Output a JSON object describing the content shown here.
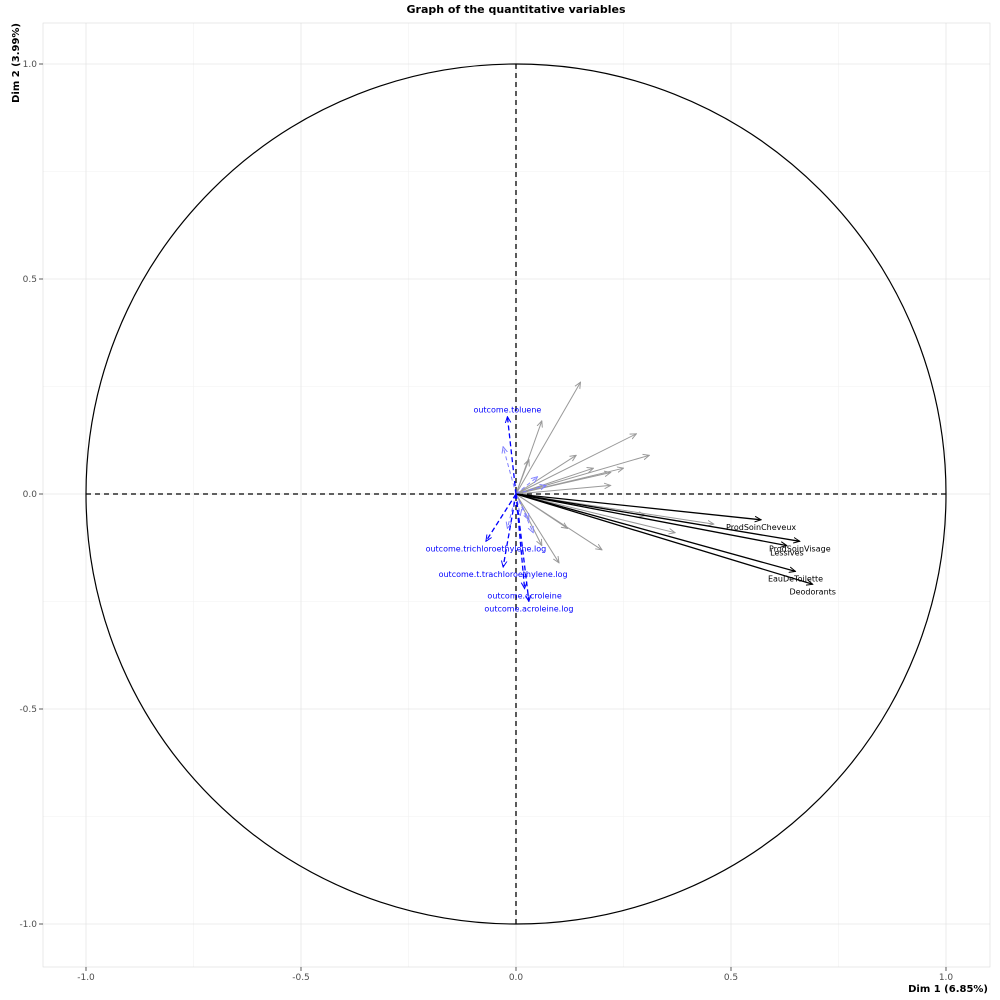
{
  "chart_data": {
    "type": "scatter",
    "subtype": "pca-correlation-circle",
    "title": "Graph of the quantitative variables",
    "xlabel": "Dim 1 (6.85%)",
    "ylabel": "Dim 2 (3.99%)",
    "xlim": [
      -1.0,
      1.0
    ],
    "ylim": [
      -1.0,
      1.0
    ],
    "x_ticks": [
      -1.0,
      -0.5,
      0.0,
      0.5,
      1.0
    ],
    "x_tick_labels": [
      "-1.0",
      "-0.5",
      "0.0",
      "0.5",
      "1.0"
    ],
    "y_ticks": [
      -1.0,
      -0.5,
      0.0,
      0.5,
      1.0
    ],
    "y_tick_labels": [
      "-1.0",
      "-0.5",
      "0.0",
      "0.5",
      "1.0"
    ],
    "grid": true,
    "colors": {
      "active_labeled": "#000000",
      "active_unlabeled": "#999999",
      "supplementary": "#0000ff",
      "supplementary_faint": "#8080ff"
    },
    "series": [
      {
        "role": "active-labeled",
        "points": [
          {
            "name": "ProdSoinCheveux",
            "x": 0.57,
            "y": -0.06
          },
          {
            "name": "ProdSoinVisage",
            "x": 0.66,
            "y": -0.11
          },
          {
            "name": "Lessives",
            "x": 0.63,
            "y": -0.12
          },
          {
            "name": "EauDeToilette",
            "x": 0.65,
            "y": -0.18
          },
          {
            "name": "Deodorants",
            "x": 0.69,
            "y": -0.21
          }
        ]
      },
      {
        "role": "active-unlabeled",
        "points": [
          {
            "x": 0.15,
            "y": 0.26
          },
          {
            "x": 0.06,
            "y": 0.17
          },
          {
            "x": 0.28,
            "y": 0.14
          },
          {
            "x": 0.31,
            "y": 0.09
          },
          {
            "x": 0.14,
            "y": 0.09
          },
          {
            "x": 0.18,
            "y": 0.06
          },
          {
            "x": 0.25,
            "y": 0.06
          },
          {
            "x": 0.22,
            "y": 0.05
          },
          {
            "x": 0.22,
            "y": 0.02
          },
          {
            "x": 0.03,
            "y": 0.08
          },
          {
            "x": 0.46,
            "y": -0.07
          },
          {
            "x": 0.37,
            "y": -0.09
          },
          {
            "x": 0.2,
            "y": -0.13
          },
          {
            "x": 0.1,
            "y": -0.16
          },
          {
            "x": 0.12,
            "y": -0.08
          },
          {
            "x": 0.3,
            "y": -0.05
          },
          {
            "x": 0.06,
            "y": -0.12
          }
        ]
      },
      {
        "role": "supplementary-labeled",
        "points": [
          {
            "name": "outcome.toluene",
            "x": -0.02,
            "y": 0.18
          },
          {
            "name": "outcome.trichloroethylene.log",
            "x": -0.07,
            "y": -0.11
          },
          {
            "name": "outcome.t.trachloroethylene.log",
            "x": -0.03,
            "y": -0.17
          },
          {
            "name": "outcome.acroleine",
            "x": 0.02,
            "y": -0.22
          },
          {
            "name": "outcome.acroleine.log",
            "x": 0.03,
            "y": -0.25
          }
        ]
      },
      {
        "role": "supplementary-unlabeled",
        "points": [
          {
            "x": -0.03,
            "y": 0.11
          },
          {
            "x": 0.05,
            "y": 0.04
          },
          {
            "x": 0.07,
            "y": 0.02
          },
          {
            "x": 0.03,
            "y": -0.06
          },
          {
            "x": 0.04,
            "y": -0.09
          },
          {
            "x": -0.02,
            "y": -0.08
          },
          {
            "x": 0.01,
            "y": -0.05
          }
        ]
      }
    ]
  }
}
